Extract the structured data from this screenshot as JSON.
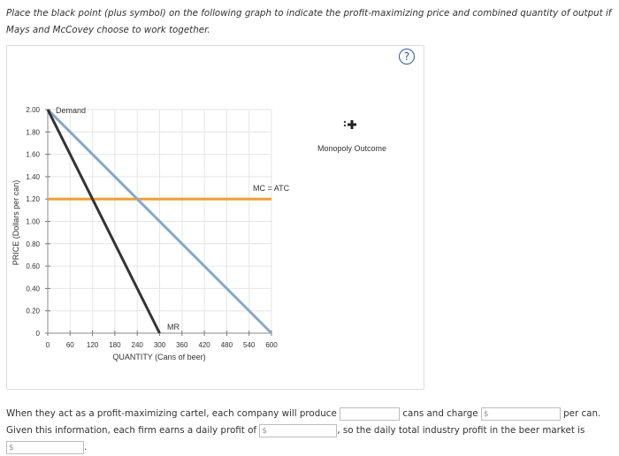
{
  "prompt": {
    "text": "Place the black point (plus symbol) on the following graph to indicate the profit-maximizing price and combined quantity of output if Mays and McCovey choose to work together."
  },
  "help_icon": "?",
  "palette": {
    "marker_label": "Monopoly Outcome",
    "marker_icon": "plus-marker-icon"
  },
  "colors": {
    "demand": "#86a8c9",
    "mr": "#333333",
    "mc": "#f0a030",
    "grid": "#e6e6e6",
    "help": "#2a5c9c"
  },
  "chart_data": {
    "type": "line",
    "xlabel": "QUANTITY (Cans of beer)",
    "ylabel": "PRICE (Dollars per can)",
    "xlim": [
      0,
      600
    ],
    "ylim": [
      0,
      2.0
    ],
    "x_ticks": [
      "0",
      "60",
      "120",
      "180",
      "240",
      "300",
      "360",
      "420",
      "480",
      "540",
      "600"
    ],
    "y_ticks": [
      "0",
      "0.20",
      "0.40",
      "0.60",
      "0.80",
      "1.00",
      "1.20",
      "1.40",
      "1.60",
      "1.80",
      "2.00"
    ],
    "grid": true,
    "series": [
      {
        "name": "Demand",
        "points": [
          [
            0,
            2.0
          ],
          [
            600,
            0
          ]
        ]
      },
      {
        "name": "MR",
        "points": [
          [
            0,
            2.0
          ],
          [
            300,
            0
          ]
        ]
      },
      {
        "name": "MC = ATC",
        "points": [
          [
            0,
            1.2
          ],
          [
            600,
            1.2
          ]
        ]
      }
    ]
  },
  "question": {
    "part1": "When they act as a profit-maximizing cartel, each company will produce",
    "part2": "cans and charge",
    "part3": "per can. Given this information, each firm earns a daily profit of",
    "part4": ", so the daily total industry profit in the beer market is",
    "part5": ".",
    "currency_placeholder": "$"
  }
}
